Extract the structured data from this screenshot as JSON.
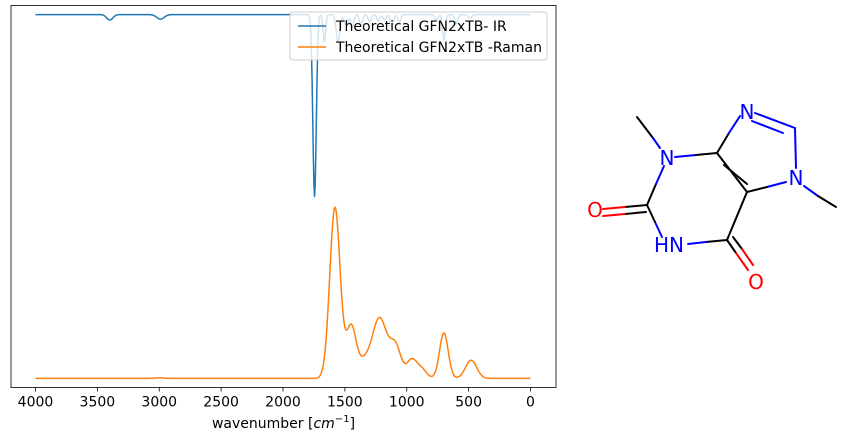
{
  "chart_data": {
    "type": "line",
    "xlabel": "wavenumber [cm⁻¹]",
    "xlabel_main": "wavenumber ",
    "xlabel_unit_open": "[",
    "xlabel_unit_base": "cm",
    "xlabel_unit_exp": "−1",
    "xlabel_unit_close": "]",
    "xlim": [
      4000,
      0
    ],
    "x_reversed": true,
    "xticks": [
      4000,
      3500,
      3000,
      2500,
      2000,
      1500,
      1000,
      500,
      0
    ],
    "xtick_labels": [
      "4000",
      "3500",
      "3000",
      "2500",
      "2000",
      "1500",
      "1000",
      "500",
      "0"
    ],
    "yticks_shown": false,
    "ylim": [
      -1.05,
      1.05
    ],
    "grid": false,
    "legend": {
      "position": "top-right"
    },
    "series": [
      {
        "name": "Theoretical GFN2xTB- IR",
        "color": "#1f77b4",
        "baseline": 1.0,
        "direction": "down",
        "peaks": [
          {
            "x": 3400,
            "height": 0.03,
            "width": 25
          },
          {
            "x": 2990,
            "height": 0.025,
            "width": 30
          },
          {
            "x": 1745,
            "height": 1.0,
            "width": 14
          },
          {
            "x": 1665,
            "height": 0.15,
            "width": 10
          },
          {
            "x": 1555,
            "height": 0.15,
            "width": 15
          },
          {
            "x": 1490,
            "height": 0.06,
            "width": 15
          },
          {
            "x": 1440,
            "height": 0.07,
            "width": 12
          },
          {
            "x": 1370,
            "height": 0.06,
            "width": 12
          },
          {
            "x": 1300,
            "height": 0.04,
            "width": 12
          },
          {
            "x": 1230,
            "height": 0.035,
            "width": 12
          },
          {
            "x": 1180,
            "height": 0.03,
            "width": 12
          },
          {
            "x": 1120,
            "height": 0.06,
            "width": 14
          },
          {
            "x": 1060,
            "height": 0.04,
            "width": 12
          },
          {
            "x": 760,
            "height": 0.03,
            "width": 12
          },
          {
            "x": 700,
            "height": 0.14,
            "width": 12
          },
          {
            "x": 600,
            "height": 0.05,
            "width": 12
          },
          {
            "x": 490,
            "height": 0.02,
            "width": 15
          }
        ]
      },
      {
        "name": "Theoretical GFN2xTB -Raman",
        "color": "#ff7f0e",
        "baseline": -1.0,
        "direction": "up",
        "peaks": [
          {
            "x": 1580,
            "height": 0.94,
            "width": 42
          },
          {
            "x": 1450,
            "height": 0.28,
            "width": 40
          },
          {
            "x": 1350,
            "height": 0.08,
            "width": 50
          },
          {
            "x": 1220,
            "height": 0.33,
            "width": 60
          },
          {
            "x": 1090,
            "height": 0.17,
            "width": 45
          },
          {
            "x": 960,
            "height": 0.1,
            "width": 40
          },
          {
            "x": 880,
            "height": 0.05,
            "width": 40
          },
          {
            "x": 700,
            "height": 0.25,
            "width": 35
          },
          {
            "x": 480,
            "height": 0.1,
            "width": 45
          },
          {
            "x": 3000,
            "height": 0.003,
            "width": 40
          }
        ]
      }
    ]
  },
  "molecule": {
    "atoms": [
      {
        "label": "N",
        "color": "#0000ff"
      },
      {
        "label": "N",
        "color": "#0000ff"
      },
      {
        "label": "N",
        "color": "#0000ff"
      },
      {
        "label": "O",
        "color": "#ff0000"
      },
      {
        "label": "HN",
        "color": "#0000ff"
      },
      {
        "label": "O",
        "color": "#ff0000"
      }
    ]
  }
}
